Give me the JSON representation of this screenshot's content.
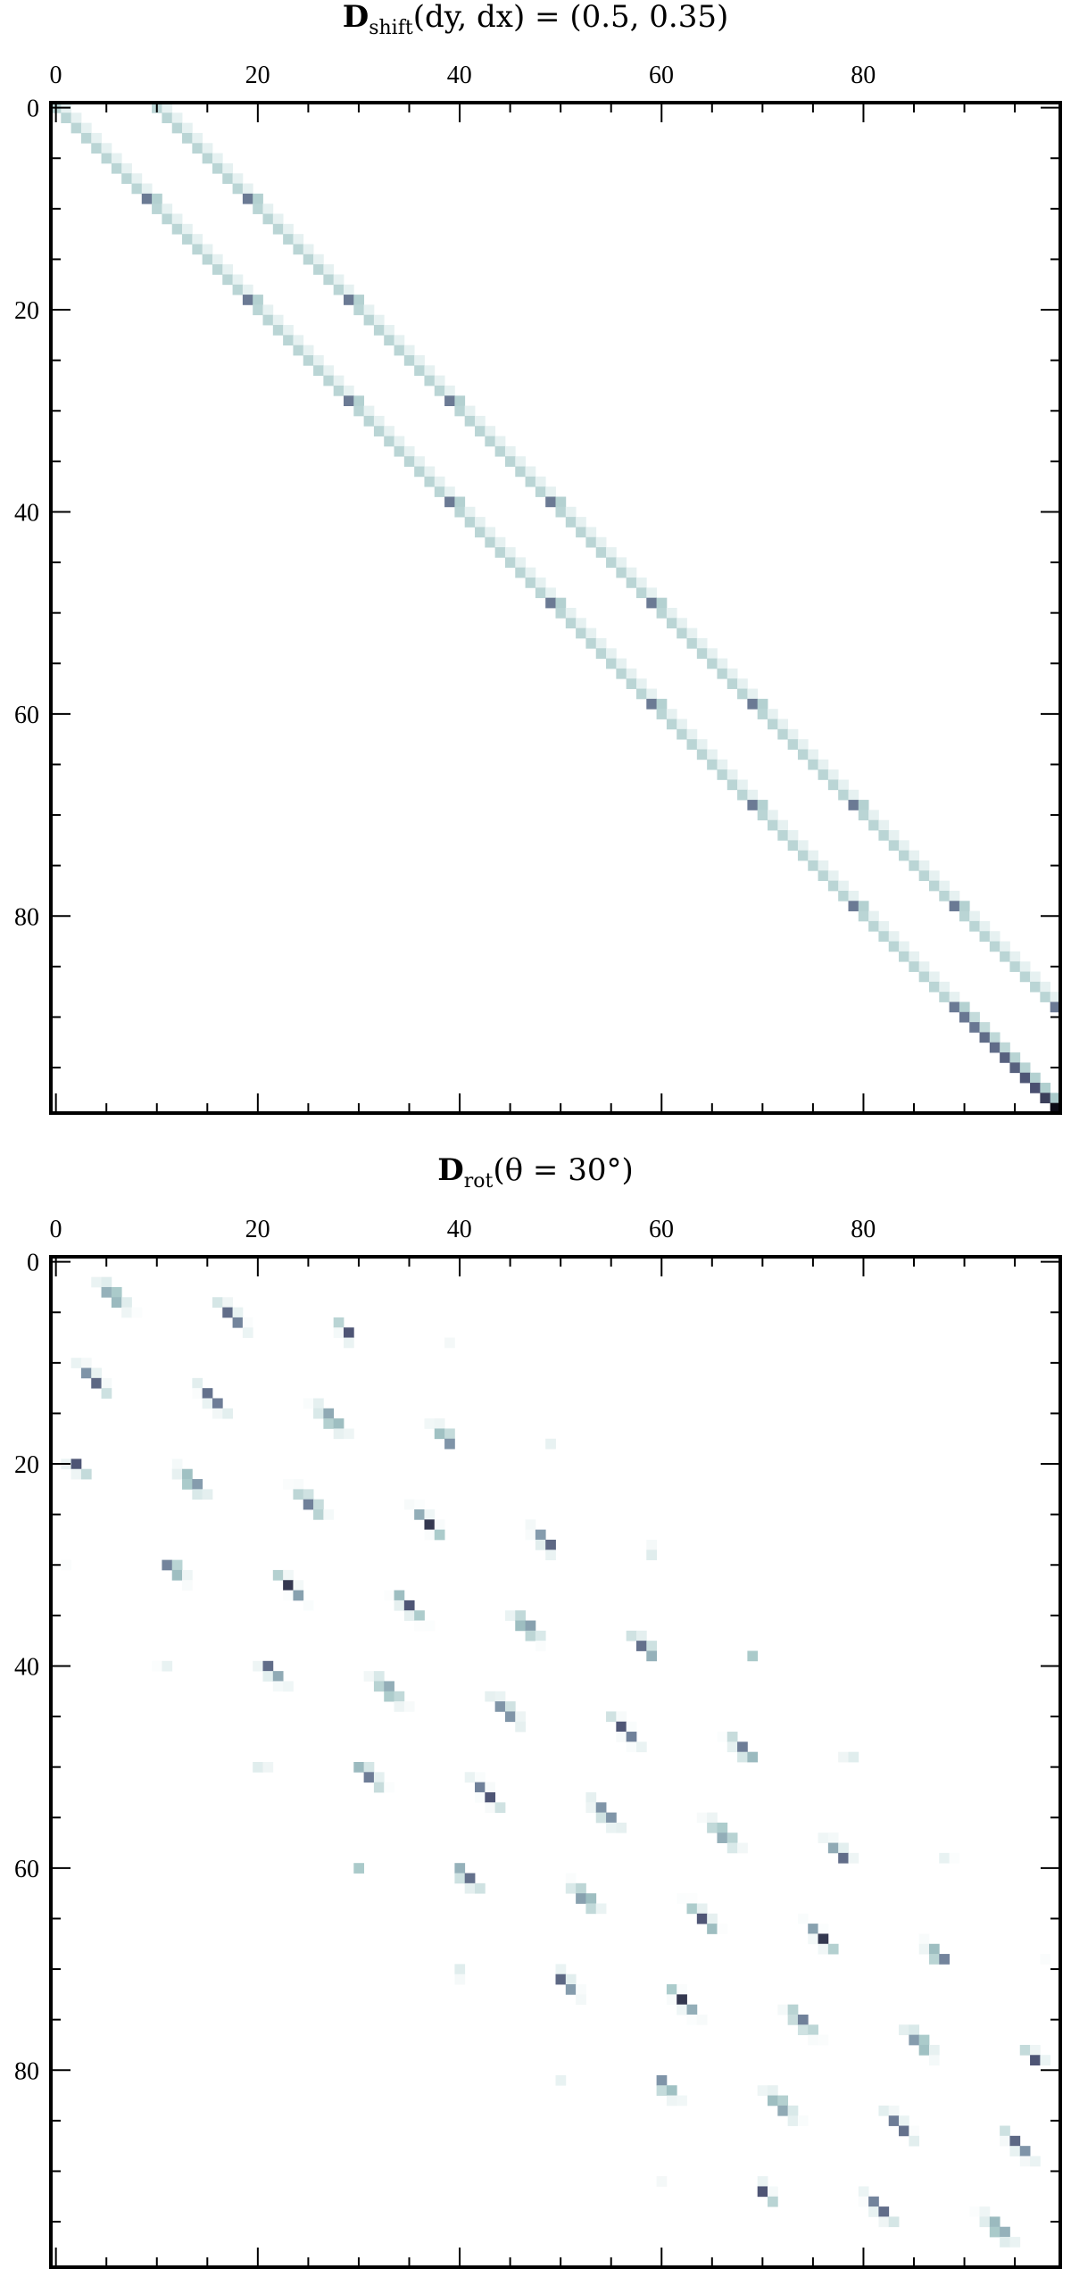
{
  "chart_data": [
    {
      "type": "heatmap",
      "title": {
        "main": "D",
        "sub": "shift",
        "rest": "(dy, dx) = (0.5, 0.35)"
      },
      "rows": 100,
      "cols": 100,
      "xlim": [
        0,
        100
      ],
      "ylim": [
        100,
        0
      ],
      "x_ticks": [
        0,
        20,
        40,
        60,
        80
      ],
      "y_ticks": [
        0,
        20,
        40,
        60,
        80
      ],
      "x_tick_labels": [
        "0",
        "20",
        "40",
        "60",
        "80"
      ],
      "y_tick_labels": [
        "0",
        "20",
        "40",
        "60",
        "80"
      ],
      "x_axis_position": "top",
      "grid": false,
      "colormap": "bone_r",
      "block_size": 10,
      "bands": [
        {
          "offset": 0,
          "interior_value": 0.33,
          "block_end_value": 0.65
        },
        {
          "offset": 1,
          "interior_value": 0.17,
          "block_end_value": 0.35
        },
        {
          "offset": 10,
          "interior_value": 0.33,
          "block_end_value": 0.65
        },
        {
          "offset": 11,
          "interior_value": 0.17,
          "block_end_value": 0.35
        }
      ],
      "last_block_diagonal_values": [
        0.66,
        0.66,
        0.7,
        0.7,
        0.74,
        0.74,
        0.78,
        0.8,
        0.85,
        1.0
      ]
    },
    {
      "type": "heatmap",
      "title": {
        "main": "D",
        "sub": "rot",
        "rest": "(θ = 30°)"
      },
      "rows": 100,
      "cols": 100,
      "xlim": [
        0,
        100
      ],
      "ylim": [
        100,
        0
      ],
      "x_ticks": [
        0,
        20,
        40,
        60,
        80
      ],
      "y_ticks": [
        0,
        20,
        40,
        60,
        80
      ],
      "x_tick_labels": [
        "0",
        "20",
        "40",
        "60",
        "80"
      ],
      "y_tick_labels": [
        "0",
        "20",
        "40",
        "60",
        "80"
      ],
      "x_axis_position": "top",
      "grid": false,
      "colormap": "bone_r",
      "rotation_deg": 30,
      "image_size": [
        10,
        10
      ]
    }
  ]
}
